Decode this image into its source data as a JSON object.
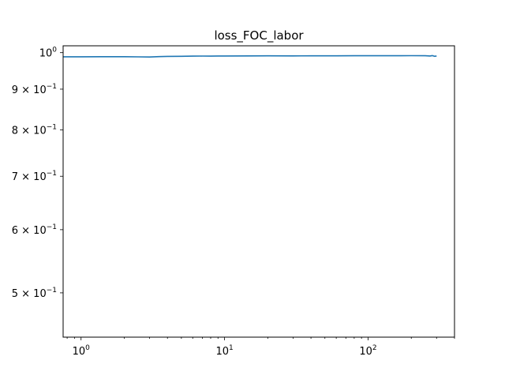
{
  "chart_data": {
    "type": "line",
    "title": "loss_FOC_labor",
    "xlabel": "",
    "ylabel": "",
    "xscale": "log",
    "yscale": "log",
    "xlim": [
      0.75,
      400
    ],
    "ylim": [
      0.44,
      1.02
    ],
    "grid": false,
    "line_color": "#1f77b4",
    "x_ticks": [
      {
        "value": 1,
        "base": "10",
        "exp": "0"
      },
      {
        "value": 10,
        "base": "10",
        "exp": "1"
      },
      {
        "value": 100,
        "base": "10",
        "exp": "2"
      }
    ],
    "y_ticks": [
      {
        "value": 1.0,
        "mant": "",
        "base": "10",
        "exp": "0"
      },
      {
        "value": 0.9,
        "mant": "9 × ",
        "base": "10",
        "exp": "−1"
      },
      {
        "value": 0.8,
        "mant": "8 × ",
        "base": "10",
        "exp": "−1"
      },
      {
        "value": 0.7,
        "mant": "7 × ",
        "base": "10",
        "exp": "−1"
      },
      {
        "value": 0.6,
        "mant": "6 × ",
        "base": "10",
        "exp": "−1"
      },
      {
        "value": 0.5,
        "mant": "5 × ",
        "base": "10",
        "exp": "−1"
      }
    ],
    "series": [
      {
        "x": [
          0.75,
          1,
          1.5,
          2,
          2.5,
          3,
          3.5,
          4,
          5,
          6,
          7,
          8,
          9,
          10,
          15,
          20,
          30,
          40,
          50,
          60,
          80,
          100,
          150,
          200,
          250,
          270,
          280,
          290,
          300
        ],
        "y": [
          0.9883,
          0.9883,
          0.9884,
          0.9885,
          0.988,
          0.9876,
          0.9886,
          0.9893,
          0.9895,
          0.99,
          0.9903,
          0.99,
          0.9905,
          0.9905,
          0.9906,
          0.9908,
          0.9907,
          0.9909,
          0.9909,
          0.991,
          0.9911,
          0.9912,
          0.9912,
          0.9914,
          0.9912,
          0.9905,
          0.9915,
          0.9895,
          0.9905
        ]
      }
    ]
  }
}
